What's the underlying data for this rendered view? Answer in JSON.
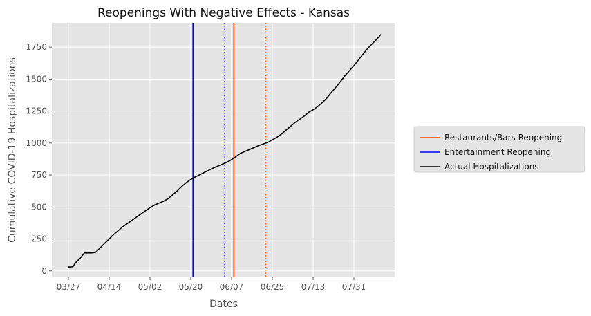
{
  "chart_data": {
    "type": "line",
    "title": "Reopenings With Negative Effects - Kansas",
    "xlabel": "Dates",
    "ylabel": "Cumulative COVID-19 Hospitalizations",
    "x_tick_labels": [
      "03/27",
      "04/14",
      "05/02",
      "05/20",
      "06/07",
      "06/25",
      "07/13",
      "07/31"
    ],
    "x_ticks_day": [
      0,
      18,
      36,
      54,
      72,
      90,
      108,
      126
    ],
    "y_ticks": [
      0,
      250,
      500,
      750,
      1000,
      1250,
      1500,
      1750
    ],
    "y_tick_labels": [
      "0",
      "250",
      "500",
      "750",
      "1000",
      "1250",
      "1500",
      "1750"
    ],
    "xlim_day": [
      -7.3,
      144.3
    ],
    "ylim": [
      -50,
      1940
    ],
    "grid": true,
    "legend_position": "right",
    "series": [
      {
        "name": "Actual Hospitalizations",
        "color": "#000000",
        "x_day": [
          0,
          2,
          3,
          4,
          5,
          7,
          10,
          12,
          14,
          16,
          20,
          24,
          28,
          32,
          34,
          36,
          38,
          40,
          42,
          44,
          46,
          48,
          50,
          52,
          54,
          56,
          58,
          60,
          62,
          64,
          66,
          68,
          70,
          72,
          74,
          76,
          80,
          84,
          88,
          90,
          92,
          94,
          96,
          98,
          100,
          102,
          104,
          106,
          108,
          110,
          112,
          114,
          116,
          118,
          120,
          122,
          124,
          126,
          128,
          130,
          132,
          134,
          136,
          138
        ],
        "y": [
          30,
          32,
          60,
          80,
          95,
          140,
          140,
          145,
          180,
          215,
          285,
          345,
          395,
          445,
          470,
          495,
          515,
          530,
          545,
          565,
          595,
          625,
          660,
          690,
          715,
          735,
          752,
          770,
          788,
          805,
          820,
          835,
          850,
          870,
          895,
          920,
          950,
          980,
          1005,
          1025,
          1045,
          1070,
          1100,
          1130,
          1160,
          1185,
          1210,
          1240,
          1260,
          1285,
          1315,
          1350,
          1395,
          1435,
          1480,
          1525,
          1565,
          1605,
          1650,
          1695,
          1738,
          1775,
          1810,
          1850
        ]
      }
    ],
    "vertical_lines": [
      {
        "name": "Restaurants/Bars Reopening",
        "color": "#ff4500",
        "x_day": 73,
        "style": "solid"
      },
      {
        "name": "",
        "color": "#ff4500",
        "x_day": 87,
        "style": "dotted"
      },
      {
        "name": "Entertainment Reopening",
        "color": "#0000ff",
        "x_day": 55,
        "style": "solid"
      },
      {
        "name": "",
        "color": "#0000ff",
        "x_day": 69,
        "style": "dotted"
      }
    ],
    "legend": [
      {
        "label": "Restaurants/Bars Reopening",
        "color": "#ff4500"
      },
      {
        "label": "Entertainment Reopening",
        "color": "#0000ff"
      },
      {
        "label": "Actual Hospitalizations",
        "color": "#000000"
      }
    ]
  }
}
